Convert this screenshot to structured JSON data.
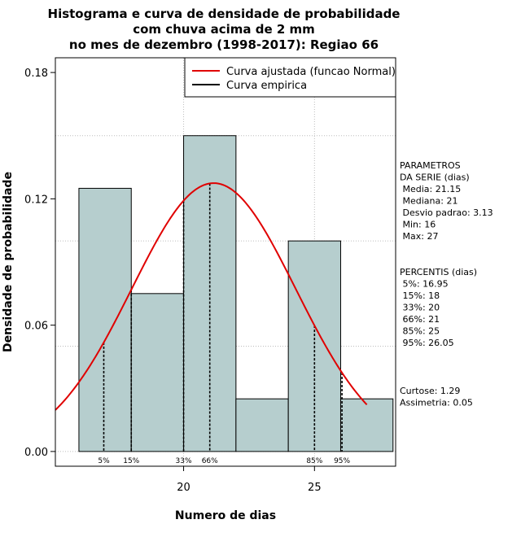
{
  "chart_data": {
    "type": "bar",
    "title": [
      "Histograma e curva de densidade de probabilidade",
      "com chuva acima de 2 mm",
      "no mes de dezembro (1998-2017): Regiao 66"
    ],
    "xlabel": "Numero de dias",
    "ylabel": "Densidade de probabilidade",
    "xlim": [
      15.1,
      28.1
    ],
    "ylim": [
      -0.007,
      0.187
    ],
    "x_ticks": [
      20,
      25
    ],
    "y_ticks": [
      0.0,
      0.06,
      0.12,
      0.18
    ],
    "y_tick_labels": [
      "0.00",
      "0.06",
      "0.12",
      "0.18"
    ],
    "grid": true,
    "bins": [
      {
        "from": 16,
        "to": 18,
        "density": 0.125
      },
      {
        "from": 18,
        "to": 20,
        "density": 0.075
      },
      {
        "from": 20,
        "to": 22,
        "density": 0.15
      },
      {
        "from": 22,
        "to": 24,
        "density": 0.025
      },
      {
        "from": 24,
        "to": 26,
        "density": 0.1
      },
      {
        "from": 26,
        "to": 28,
        "density": 0.025
      }
    ],
    "fitted_normal": {
      "mean": 21.15,
      "sd": 3.13
    },
    "percentile_lines": [
      {
        "label": "5%",
        "x": 16.95
      },
      {
        "label": "15%",
        "x": 18
      },
      {
        "label": "33%",
        "x": 20
      },
      {
        "label": "66%",
        "x": 21
      },
      {
        "label": "85%",
        "x": 25
      },
      {
        "label": "95%",
        "x": 26.05
      }
    ],
    "legend": {
      "position": "top-right",
      "entries": [
        {
          "label": "Curva ajustada (funcao Normal)",
          "color": "#e00000"
        },
        {
          "label": "Curva empirica",
          "color": "#000000"
        }
      ]
    },
    "colors": {
      "bar_fill": "#b6cece",
      "curve": "#e00000",
      "grid": "#bdbdbd"
    }
  },
  "side_panel": {
    "params_lines": [
      "PARAMETROS",
      "DA SERIE (dias)",
      "   Media: 21.15",
      "   Mediana: 21",
      "   Desvio padrao: 3.13",
      "   Min: 16",
      "   Max: 27"
    ],
    "percentis_lines": [
      "PERCENTIS (dias)",
      "   5%: 16.95",
      "   15%: 18",
      "   33%: 20",
      "   66%: 21",
      "   85%: 25",
      "   95%: 26.05"
    ],
    "stats_lines": [
      "     Curtose: 1.29",
      "Assimetria: 0.05"
    ]
  }
}
